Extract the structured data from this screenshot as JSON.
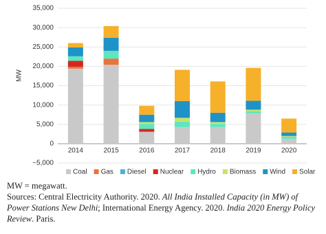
{
  "chart_data": {
    "type": "stacked-bar",
    "y_label": "MW",
    "categories": [
      "2014",
      "2015",
      "2016",
      "2017",
      "2018",
      "2019",
      "2020"
    ],
    "series": [
      {
        "name": "Coal",
        "color": "#c9c9c9",
        "values": [
          19400,
          20400,
          3100,
          4300,
          4300,
          7900,
          1300
        ]
      },
      {
        "name": "Gas",
        "color": "#e8743b",
        "values": [
          500,
          1600,
          0,
          0,
          0,
          0,
          0
        ]
      },
      {
        "name": "Diesel",
        "color": "#4fb0d6",
        "values": [
          0,
          0,
          0,
          0,
          0,
          0,
          0
        ]
      },
      {
        "name": "Nuclear",
        "color": "#d7261e",
        "values": [
          1500,
          0,
          700,
          0,
          0,
          0,
          0
        ]
      },
      {
        "name": "Hydro",
        "color": "#5ee6c0",
        "values": [
          1200,
          2000,
          1300,
          1400,
          800,
          500,
          500
        ]
      },
      {
        "name": "Biomass",
        "color": "#c6e36a",
        "values": [
          0,
          0,
          500,
          1000,
          500,
          400,
          200
        ]
      },
      {
        "name": "Wind",
        "color": "#1f93c7",
        "values": [
          2300,
          3400,
          1900,
          4300,
          2400,
          2300,
          900
        ]
      },
      {
        "name": "Solar",
        "color": "#f6b02a",
        "values": [
          1100,
          3000,
          2300,
          8100,
          8100,
          8500,
          3600
        ]
      }
    ],
    "ylim": [
      -5000,
      35000
    ],
    "yticks": [
      {
        "value": -5000,
        "label": "−5,000"
      },
      0,
      {
        "value": 5000,
        "label": "5,000"
      },
      {
        "value": 10000,
        "label": "10,000"
      },
      {
        "value": 15000,
        "label": "15,000"
      },
      {
        "value": 20000,
        "label": "20,000"
      },
      {
        "value": 25000,
        "label": "25,000"
      },
      {
        "value": 30000,
        "label": "30,000"
      },
      {
        "value": 35000,
        "label": "35,000"
      }
    ],
    "grid": true
  },
  "notes": {
    "units": "MW = megawatt.",
    "sources": [
      "Sources: Central Electricity Authority. 2020. ",
      "All India Installed Capacity (in MW) of Power Stations New Delhi",
      "; International Energy Agency. 2020. ",
      "India 2020 Energy Policy Review",
      ". Paris."
    ]
  }
}
